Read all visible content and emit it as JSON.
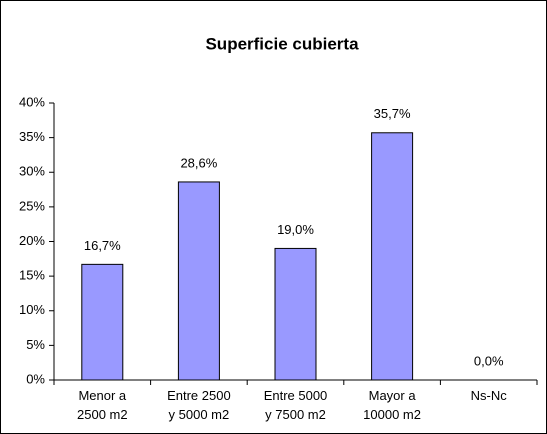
{
  "chart_data": {
    "type": "bar",
    "title": "Superficie cubierta",
    "categories": [
      "Menor a\n2500 m2",
      "Entre 2500\ny 5000 m2",
      "Entre 5000\ny 7500 m2",
      "Mayor a\n10000 m2",
      "Ns-Nc"
    ],
    "values": [
      16.7,
      28.6,
      19.0,
      35.7,
      0.0
    ],
    "value_labels": [
      "16,7%",
      "28,6%",
      "19,0%",
      "35,7%",
      "0,0%"
    ],
    "color": "#9999ff",
    "ylim": [
      0,
      40
    ],
    "yticks": [
      {
        "value": 0,
        "label": "0%"
      },
      {
        "value": 5,
        "label": "5%"
      },
      {
        "value": 10,
        "label": "10%"
      },
      {
        "value": 15,
        "label": "15%"
      },
      {
        "value": 20,
        "label": "20%"
      },
      {
        "value": 25,
        "label": "25%"
      },
      {
        "value": 30,
        "label": "30%"
      },
      {
        "value": 35,
        "label": "35%"
      },
      {
        "value": 40,
        "label": "40%"
      }
    ]
  }
}
